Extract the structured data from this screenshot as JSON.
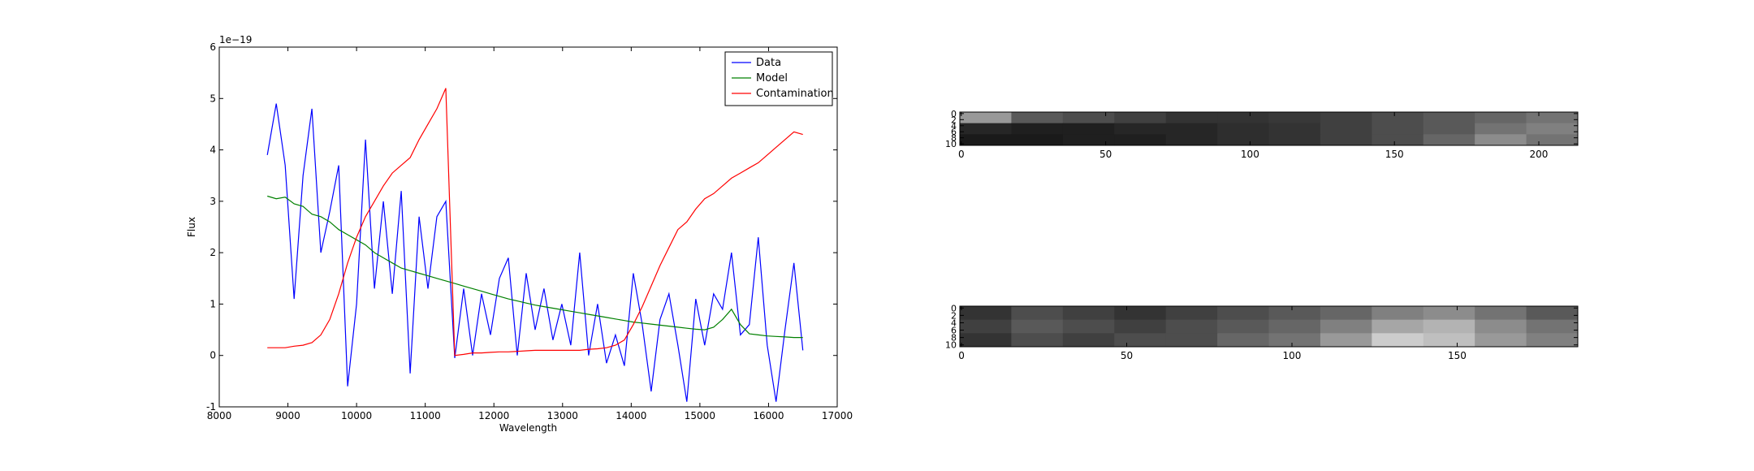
{
  "chart_data": [
    {
      "type": "line",
      "x_label": "Wavelength",
      "y_label": "Flux",
      "y_offset_label": "1e−19",
      "xlim": [
        8000,
        17000
      ],
      "xticks": [
        8000,
        9000,
        10000,
        11000,
        12000,
        13000,
        14000,
        15000,
        16000,
        17000
      ],
      "ylim": [
        -1,
        6
      ],
      "yticks": [
        -1,
        0,
        1,
        2,
        3,
        4,
        5,
        6
      ],
      "legend": "upper right",
      "grid": false,
      "x": [
        8700,
        8830,
        8960,
        9090,
        9220,
        9350,
        9480,
        9610,
        9740,
        9870,
        10000,
        10130,
        10260,
        10390,
        10520,
        10650,
        10780,
        10910,
        11040,
        11170,
        11300,
        11430,
        11560,
        11690,
        11820,
        11950,
        12080,
        12210,
        12340,
        12470,
        12600,
        12730,
        12860,
        12990,
        13120,
        13250,
        13380,
        13510,
        13640,
        13770,
        13900,
        14030,
        14160,
        14290,
        14420,
        14550,
        14680,
        14810,
        14940,
        15070,
        15200,
        15330,
        15460,
        15590,
        15720,
        15850,
        15980,
        16110,
        16240,
        16370,
        16500
      ],
      "series": [
        {
          "name": "Data",
          "color": "#0000ff",
          "values": [
            3.9,
            4.9,
            3.7,
            1.1,
            3.5,
            4.8,
            2.0,
            2.8,
            3.7,
            -0.6,
            1.0,
            4.2,
            1.3,
            3.0,
            1.2,
            3.2,
            -0.35,
            2.7,
            1.3,
            2.7,
            3.0,
            -0.05,
            1.3,
            0.0,
            1.2,
            0.4,
            1.5,
            1.9,
            0.0,
            1.6,
            0.5,
            1.3,
            0.3,
            1.0,
            0.2,
            2.0,
            0.0,
            1.0,
            -0.15,
            0.4,
            -0.2,
            1.6,
            0.6,
            -0.7,
            0.7,
            1.2,
            0.2,
            -0.9,
            1.1,
            0.2,
            1.2,
            0.9,
            2.0,
            0.4,
            0.6,
            2.3,
            0.2,
            -0.9,
            0.5,
            1.8,
            0.1
          ]
        },
        {
          "name": "Model",
          "color": "#008000",
          "values": [
            3.1,
            3.05,
            3.08,
            2.95,
            2.9,
            2.75,
            2.7,
            2.6,
            2.45,
            2.35,
            2.25,
            2.15,
            2.0,
            1.9,
            1.8,
            1.7,
            1.65,
            1.6,
            1.55,
            1.5,
            1.45,
            1.4,
            1.35,
            1.3,
            1.25,
            1.2,
            1.15,
            1.1,
            1.06,
            1.02,
            0.98,
            0.95,
            0.92,
            0.89,
            0.86,
            0.83,
            0.8,
            0.77,
            0.74,
            0.71,
            0.68,
            0.65,
            0.63,
            0.61,
            0.59,
            0.57,
            0.55,
            0.53,
            0.51,
            0.5,
            0.55,
            0.7,
            0.9,
            0.6,
            0.42,
            0.4,
            0.38,
            0.37,
            0.36,
            0.35,
            0.35
          ]
        },
        {
          "name": "Contamination",
          "color": "#ff0000",
          "values": [
            0.15,
            0.15,
            0.15,
            0.18,
            0.2,
            0.25,
            0.4,
            0.7,
            1.2,
            1.8,
            2.3,
            2.7,
            3.0,
            3.3,
            3.55,
            3.7,
            3.85,
            4.2,
            4.5,
            4.8,
            5.2,
            0.0,
            0.02,
            0.05,
            0.05,
            0.06,
            0.07,
            0.07,
            0.08,
            0.09,
            0.1,
            0.1,
            0.1,
            0.1,
            0.1,
            0.1,
            0.12,
            0.13,
            0.15,
            0.2,
            0.3,
            0.6,
            0.95,
            1.35,
            1.75,
            2.1,
            2.45,
            2.6,
            2.85,
            3.05,
            3.15,
            3.3,
            3.45,
            3.55,
            3.65,
            3.75,
            3.9,
            4.05,
            4.2,
            4.35,
            4.3
          ]
        }
      ]
    },
    {
      "type": "image",
      "xlim": [
        -0.5,
        213.5
      ],
      "xticks": [
        0,
        50,
        100,
        150,
        200
      ],
      "ylim": [
        10.5,
        -0.5
      ],
      "yticks": [
        0,
        2,
        4,
        6,
        8,
        10
      ],
      "vlim": [
        0,
        1
      ],
      "pixels": [
        [
          0.6,
          0.35,
          0.3,
          0.25,
          0.2,
          0.2,
          0.22,
          0.25,
          0.3,
          0.35,
          0.4,
          0.45
        ],
        [
          0.15,
          0.12,
          0.12,
          0.15,
          0.15,
          0.18,
          0.2,
          0.25,
          0.3,
          0.35,
          0.45,
          0.5
        ],
        [
          0.1,
          0.1,
          0.12,
          0.12,
          0.15,
          0.18,
          0.2,
          0.25,
          0.3,
          0.4,
          0.55,
          0.45
        ]
      ]
    },
    {
      "type": "image",
      "xlim": [
        -0.5,
        186.5
      ],
      "xticks": [
        0,
        50,
        100,
        150
      ],
      "ylim": [
        10.5,
        -0.5
      ],
      "yticks": [
        0,
        2,
        4,
        6,
        8,
        10
      ],
      "vlim": [
        0,
        1
      ],
      "pixels": [
        [
          0.2,
          0.3,
          0.25,
          0.2,
          0.25,
          0.3,
          0.35,
          0.4,
          0.5,
          0.55,
          0.45,
          0.35
        ],
        [
          0.25,
          0.35,
          0.3,
          0.25,
          0.3,
          0.35,
          0.4,
          0.5,
          0.65,
          0.7,
          0.55,
          0.45
        ],
        [
          0.2,
          0.3,
          0.25,
          0.3,
          0.3,
          0.4,
          0.45,
          0.6,
          0.8,
          0.75,
          0.6,
          0.5
        ]
      ]
    }
  ]
}
